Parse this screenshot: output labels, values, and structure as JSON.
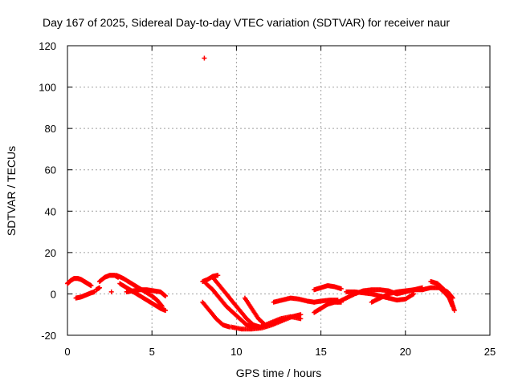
{
  "chart_data": {
    "type": "scatter",
    "title": "Day 167 of 2025, Sidereal Day-to-day VTEC variation (SDTVAR) for receiver naur",
    "xlabel": "GPS time / hours",
    "ylabel": "SDTVAR / TECUs",
    "xlim": [
      0,
      25
    ],
    "ylim": [
      -20,
      120
    ],
    "xticks": [
      0,
      5,
      10,
      15,
      20,
      25
    ],
    "yticks": [
      -20,
      0,
      20,
      40,
      60,
      80,
      100,
      120
    ],
    "grid": true,
    "marker": "+",
    "series": [
      {
        "name": "SDTVAR",
        "color": "#ff0000",
        "segments": [
          {
            "x": [
              0.0,
              0.2,
              0.4,
              0.6,
              0.8,
              1.0,
              1.2,
              1.4
            ],
            "y": [
              5,
              6.5,
              7.5,
              7.5,
              7,
              6,
              5,
              4
            ]
          },
          {
            "x": [
              0.5,
              0.8,
              1.1,
              1.4,
              1.6
            ],
            "y": [
              -2,
              -1.5,
              -0.5,
              0.5,
              1
            ]
          },
          {
            "x": [
              1.7,
              1.9
            ],
            "y": [
              2,
              3
            ]
          },
          {
            "x": [
              1.9,
              2.2,
              2.5,
              2.8,
              3.0
            ],
            "y": [
              6,
              8,
              9,
              9,
              8
            ]
          },
          {
            "x": [
              2.6
            ],
            "y": [
              1
            ]
          },
          {
            "x": [
              2.9,
              3.3,
              3.7,
              4.1,
              4.5,
              5.0,
              5.3,
              5.6
            ],
            "y": [
              9,
              7.5,
              5.5,
              3.5,
              1.5,
              -1,
              -3,
              -6
            ]
          },
          {
            "x": [
              3.1,
              3.5,
              3.9,
              4.3,
              4.7,
              5.1,
              5.5,
              5.8
            ],
            "y": [
              5,
              3,
              1,
              -1,
              -3,
              -5,
              -7,
              -8
            ]
          },
          {
            "x": [
              3.5,
              3.9,
              4.3,
              4.7,
              5.1,
              5.5,
              5.8
            ],
            "y": [
              1,
              1.5,
              2,
              2,
              1.5,
              1,
              -1
            ]
          },
          {
            "x": [
              8.1
            ],
            "y": [
              114
            ]
          },
          {
            "x": [
              8.0,
              8.3,
              8.6,
              8.9
            ],
            "y": [
              6,
              7,
              8.5,
              9
            ]
          },
          {
            "x": [
              8.2,
              8.6,
              9.0,
              9.4,
              9.8,
              10.2,
              10.6,
              11.0
            ],
            "y": [
              5,
              2,
              -2,
              -6,
              -9,
              -12,
              -15,
              -16
            ]
          },
          {
            "x": [
              8.6,
              9.0,
              9.4,
              9.8,
              10.2,
              10.6,
              11.0,
              11.4
            ],
            "y": [
              8,
              4,
              0,
              -4,
              -8,
              -12,
              -15,
              -16
            ]
          },
          {
            "x": [
              8.0,
              8.4,
              8.8,
              9.2,
              9.6
            ],
            "y": [
              -4,
              -8,
              -12,
              -15,
              -16
            ]
          },
          {
            "x": [
              10.5,
              10.9,
              11.3,
              11.7
            ],
            "y": [
              -2,
              -7,
              -12,
              -15
            ]
          },
          {
            "x": [
              9.7,
              10.3,
              10.9,
              11.5,
              12.1,
              12.7,
              13.3,
              13.8
            ],
            "y": [
              -16,
              -17,
              -17,
              -16.5,
              -15,
              -13,
              -11,
              -10
            ]
          },
          {
            "x": [
              10.8,
              11.4,
              12.0,
              12.6,
              13.2,
              13.8
            ],
            "y": [
              -16,
              -16,
              -14,
              -12,
              -11,
              -12
            ]
          },
          {
            "x": [
              12.2,
              12.7,
              13.2,
              13.7,
              14.2,
              14.6
            ],
            "y": [
              -4,
              -3,
              -2,
              -2.5,
              -3.5,
              -4
            ]
          },
          {
            "x": [
              14.6,
              15.0,
              15.4,
              15.8,
              16.2
            ],
            "y": [
              -9,
              -7,
              -5,
              -4,
              -4
            ]
          },
          {
            "x": [
              14.6,
              15.0,
              15.4,
              15.8,
              16.2
            ],
            "y": [
              2,
              3,
              4,
              3.5,
              2.5
            ]
          },
          {
            "x": [
              14.6,
              15.0,
              15.5,
              16.0
            ],
            "y": [
              -4,
              -3.5,
              -3,
              -3
            ]
          },
          {
            "x": [
              16.0,
              16.5,
              17.0,
              17.5,
              18.0,
              18.5,
              19.0,
              19.5
            ],
            "y": [
              -4,
              -2,
              0,
              1.5,
              2,
              2,
              1.5,
              0
            ]
          },
          {
            "x": [
              16.5,
              17.0,
              17.5,
              18.0,
              18.5,
              19.0,
              19.5,
              20.0,
              20.5
            ],
            "y": [
              1,
              1,
              0.5,
              0,
              -1,
              -2,
              -3,
              -2.5,
              0
            ]
          },
          {
            "x": [
              18.0,
              18.5,
              19.0,
              19.5,
              20.0,
              20.5,
              21.0
            ],
            "y": [
              -4,
              -2,
              0,
              1,
              1.5,
              2,
              2
            ]
          },
          {
            "x": [
              19.5,
              20.0,
              20.5,
              21.0
            ],
            "y": [
              0,
              1,
              2,
              3
            ]
          },
          {
            "x": [
              21.0,
              21.5,
              22.0,
              22.5,
              22.8
            ],
            "y": [
              2,
              3,
              3,
              1,
              -2
            ]
          },
          {
            "x": [
              21.5,
              21.9,
              22.3,
              22.6,
              22.8
            ],
            "y": [
              6,
              5,
              2,
              -2,
              -6
            ]
          },
          {
            "x": [
              22.0,
              22.4,
              22.7,
              22.9
            ],
            "y": [
              3,
              0,
              -3,
              -8
            ]
          }
        ]
      }
    ]
  }
}
